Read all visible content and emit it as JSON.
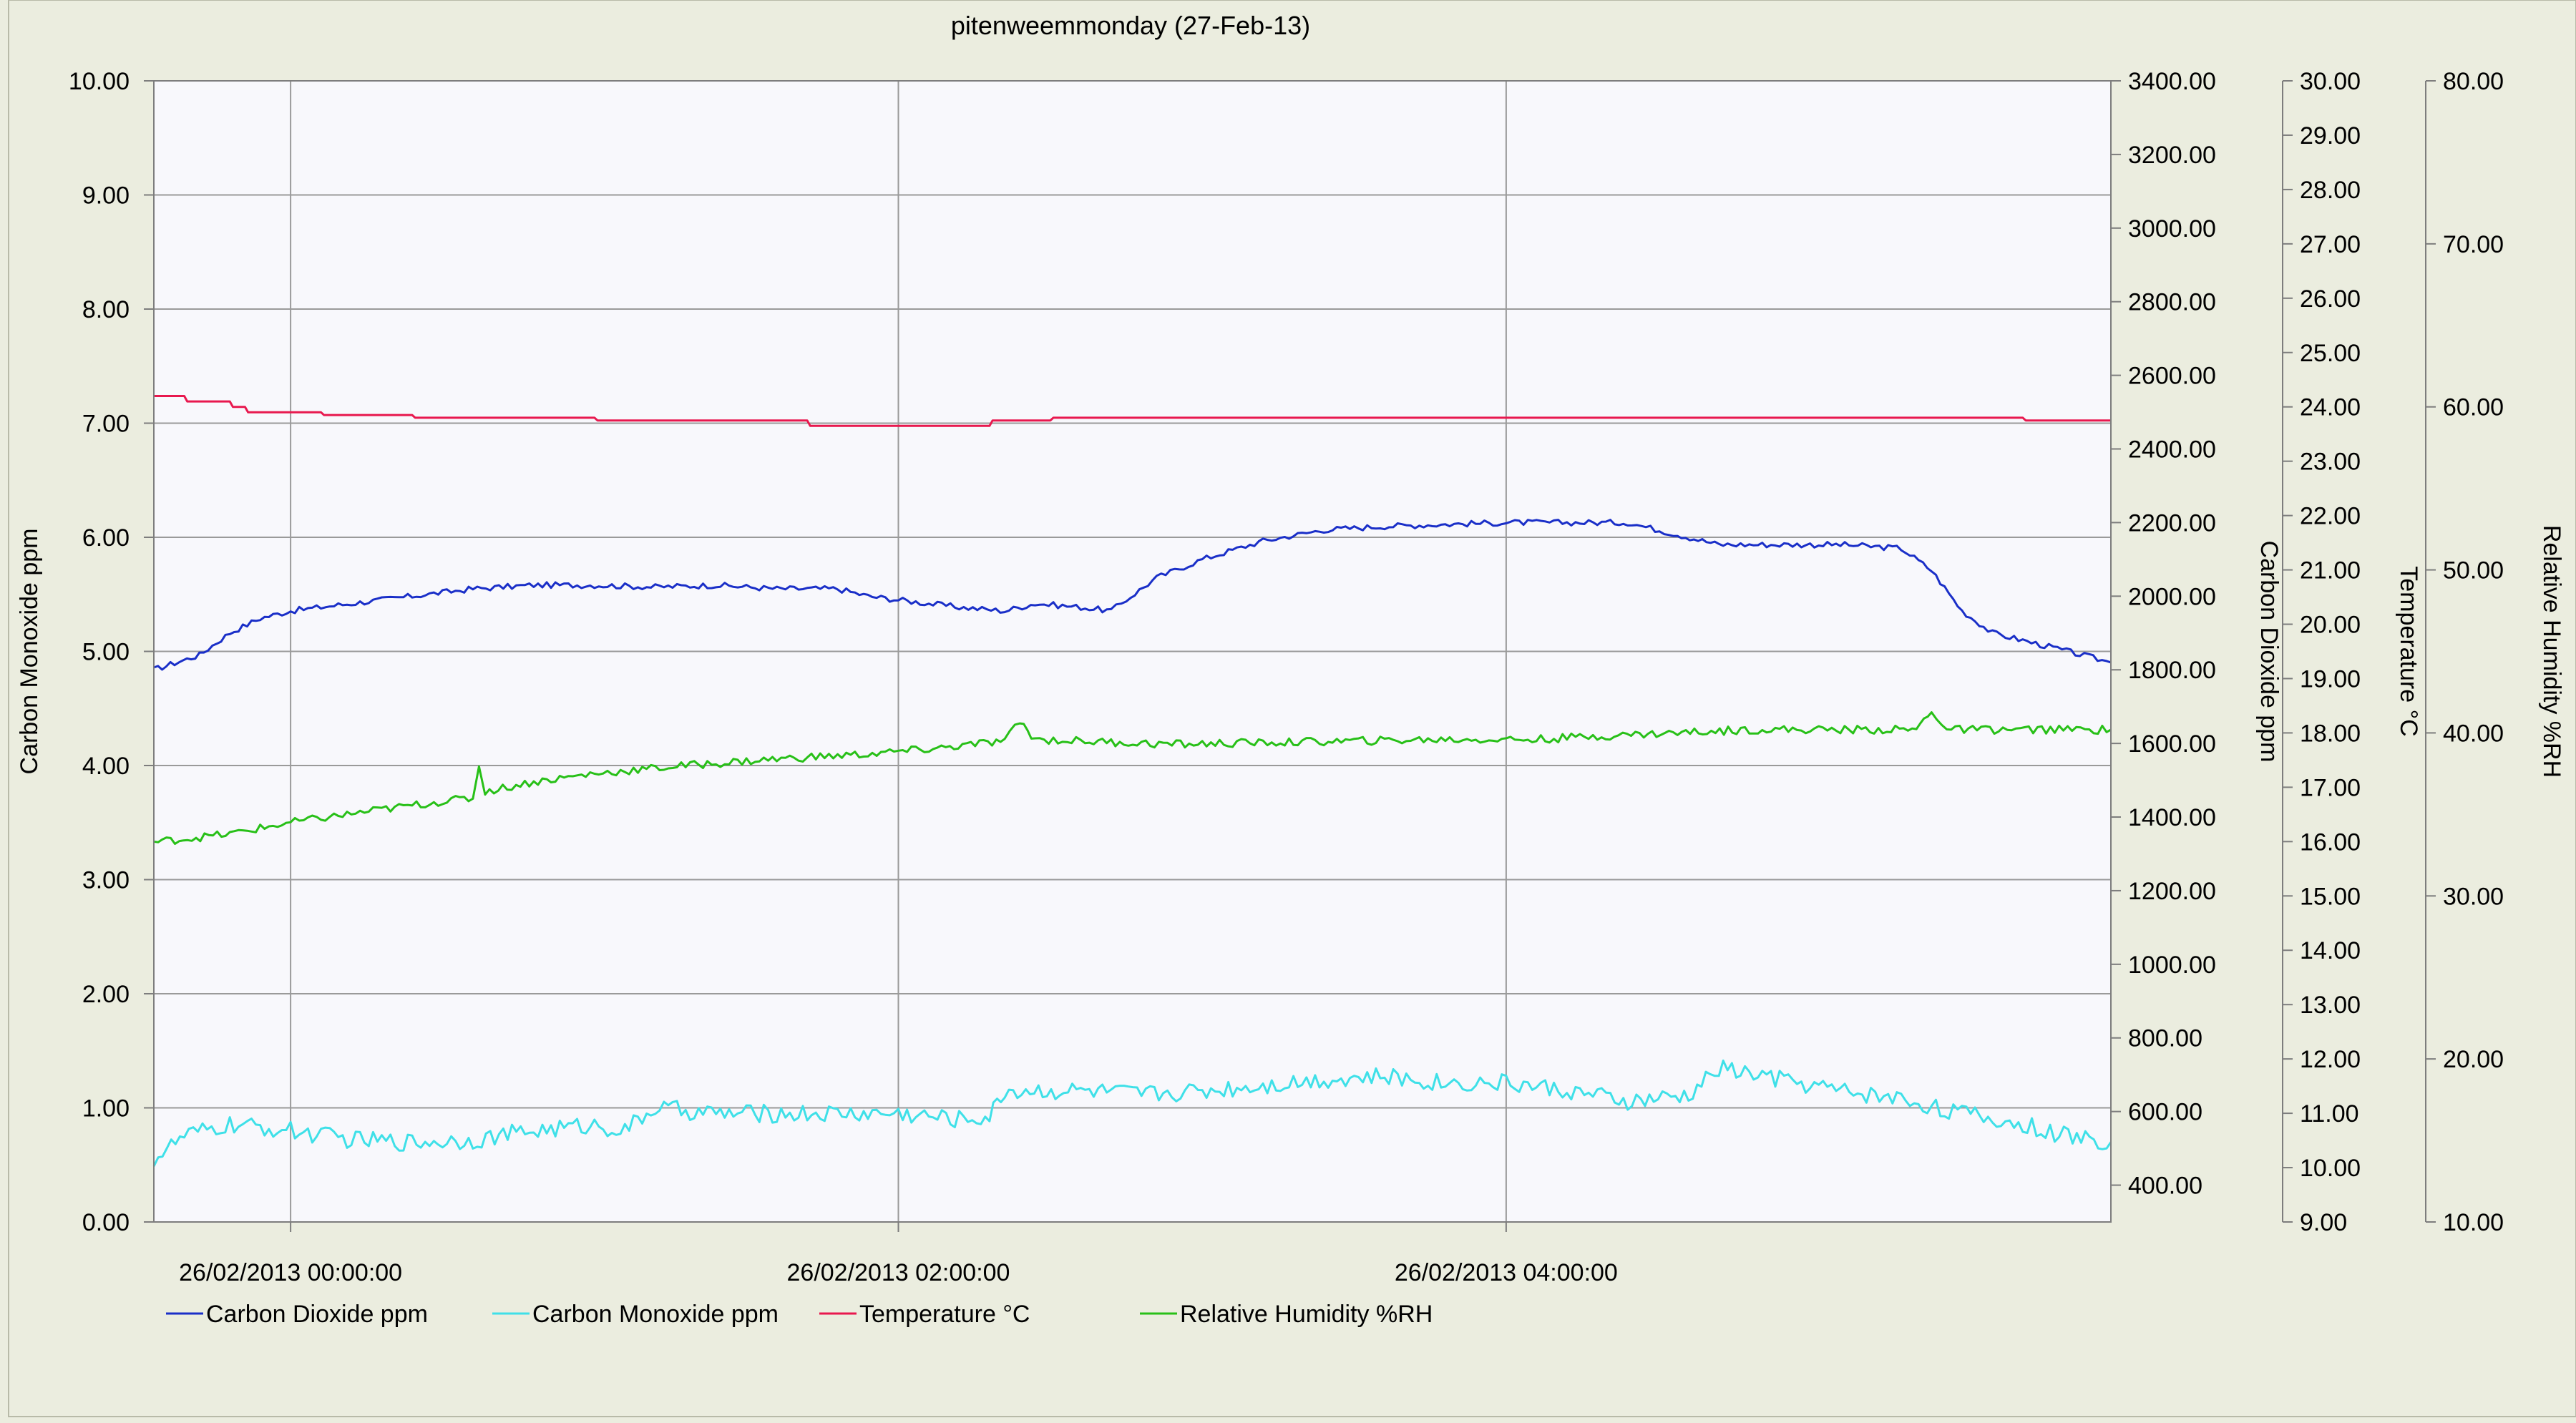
{
  "chart_data": {
    "type": "line",
    "title": "pitenweemmonday (27-Feb-13)",
    "x": {
      "tick_labels": [
        "26/02/2013 00:00:00",
        "26/02/2013 02:00:00",
        "26/02/2013 04:00:00"
      ],
      "tick_hours": [
        0,
        2,
        4
      ],
      "range_hours": [
        -0.45,
        5.99
      ]
    },
    "axes": [
      {
        "id": "co",
        "label": "Carbon Monoxide ppm",
        "side": "left",
        "range": [
          0,
          10
        ],
        "ticks": [
          "0.00",
          "1.00",
          "2.00",
          "3.00",
          "4.00",
          "5.00",
          "6.00",
          "7.00",
          "8.00",
          "9.00",
          "10.00"
        ]
      },
      {
        "id": "co2",
        "label": "Carbon Dioxide ppm",
        "side": "right",
        "range": [
          300,
          3400
        ],
        "ticks": [
          "400.00",
          "600.00",
          "800.00",
          "1000.00",
          "1200.00",
          "1400.00",
          "1600.00",
          "1800.00",
          "2000.00",
          "2200.00",
          "2400.00",
          "2600.00",
          "2800.00",
          "3000.00",
          "3200.00",
          "3400.00"
        ]
      },
      {
        "id": "temp",
        "label": "Temperature °C",
        "side": "right",
        "range": [
          9,
          30
        ],
        "ticks": [
          "9.00",
          "10.00",
          "11.00",
          "12.00",
          "13.00",
          "14.00",
          "15.00",
          "16.00",
          "17.00",
          "18.00",
          "19.00",
          "20.00",
          "21.00",
          "22.00",
          "23.00",
          "24.00",
          "25.00",
          "26.00",
          "27.00",
          "28.00",
          "29.00",
          "30.00"
        ]
      },
      {
        "id": "rh",
        "label": "Relative Humidity %RH",
        "side": "right",
        "range": [
          10,
          80
        ],
        "ticks": [
          "10.00",
          "20.00",
          "30.00",
          "40.00",
          "50.00",
          "60.00",
          "70.00",
          "80.00"
        ]
      }
    ],
    "grid": true,
    "legend_position": "bottom-left",
    "series": [
      {
        "name": "Carbon Dioxide ppm",
        "axis": "co2",
        "color": "#1a2fc8",
        "noise": 8,
        "points": [
          [
            -0.45,
            1800
          ],
          [
            -0.3,
            1840
          ],
          [
            -0.2,
            1900
          ],
          [
            -0.1,
            1940
          ],
          [
            0,
            1960
          ],
          [
            0.2,
            1980
          ],
          [
            0.4,
            2000
          ],
          [
            0.6,
            2020
          ],
          [
            0.8,
            2030
          ],
          [
            1.0,
            2030
          ],
          [
            1.2,
            2025
          ],
          [
            1.4,
            2030
          ],
          [
            1.6,
            2020
          ],
          [
            1.8,
            2020
          ],
          [
            1.9,
            2000
          ],
          [
            2.0,
            1990
          ],
          [
            2.2,
            1970
          ],
          [
            2.35,
            1960
          ],
          [
            2.45,
            1980
          ],
          [
            2.6,
            1970
          ],
          [
            2.7,
            1960
          ],
          [
            2.75,
            1990
          ],
          [
            2.85,
            2050
          ],
          [
            3.0,
            2100
          ],
          [
            3.2,
            2150
          ],
          [
            3.4,
            2180
          ],
          [
            3.6,
            2190
          ],
          [
            3.8,
            2195
          ],
          [
            4.0,
            2200
          ],
          [
            4.2,
            2200
          ],
          [
            4.4,
            2200
          ],
          [
            4.55,
            2170
          ],
          [
            4.7,
            2140
          ],
          [
            4.9,
            2140
          ],
          [
            5.1,
            2140
          ],
          [
            5.3,
            2130
          ],
          [
            5.4,
            2070
          ],
          [
            5.5,
            1960
          ],
          [
            5.6,
            1900
          ],
          [
            5.7,
            1880
          ],
          [
            5.8,
            1860
          ],
          [
            5.99,
            1820
          ]
        ]
      },
      {
        "name": "Carbon Monoxide ppm",
        "axis": "co",
        "color": "#3fe0e8",
        "noise": 0.08,
        "points": [
          [
            -0.45,
            0.55
          ],
          [
            -0.35,
            0.75
          ],
          [
            -0.2,
            0.85
          ],
          [
            0,
            0.8
          ],
          [
            0.2,
            0.72
          ],
          [
            0.4,
            0.7
          ],
          [
            0.6,
            0.72
          ],
          [
            0.8,
            0.8
          ],
          [
            1.0,
            0.85
          ],
          [
            1.1,
            0.8
          ],
          [
            1.2,
            1.0
          ],
          [
            1.4,
            0.95
          ],
          [
            1.6,
            0.95
          ],
          [
            1.8,
            0.95
          ],
          [
            2.0,
            0.95
          ],
          [
            2.2,
            0.9
          ],
          [
            2.3,
            0.92
          ],
          [
            2.35,
            1.15
          ],
          [
            2.6,
            1.15
          ],
          [
            2.8,
            1.12
          ],
          [
            3.0,
            1.15
          ],
          [
            3.2,
            1.2
          ],
          [
            3.4,
            1.25
          ],
          [
            3.6,
            1.27
          ],
          [
            3.8,
            1.22
          ],
          [
            4.0,
            1.22
          ],
          [
            4.2,
            1.15
          ],
          [
            4.4,
            1.05
          ],
          [
            4.6,
            1.1
          ],
          [
            4.7,
            1.35
          ],
          [
            4.9,
            1.25
          ],
          [
            5.1,
            1.15
          ],
          [
            5.3,
            1.08
          ],
          [
            5.5,
            0.95
          ],
          [
            5.7,
            0.85
          ],
          [
            5.85,
            0.75
          ],
          [
            5.99,
            0.7
          ]
        ]
      },
      {
        "name": "Temperature °C",
        "axis": "temp",
        "color": "#e8184e",
        "noise": 0,
        "points": [
          [
            -0.45,
            24.2
          ],
          [
            -0.35,
            24.2
          ],
          [
            -0.34,
            24.1
          ],
          [
            -0.2,
            24.1
          ],
          [
            -0.19,
            24.0
          ],
          [
            -0.15,
            24.0
          ],
          [
            -0.14,
            23.9
          ],
          [
            0.1,
            23.9
          ],
          [
            0.11,
            23.85
          ],
          [
            0.4,
            23.85
          ],
          [
            0.41,
            23.8
          ],
          [
            1.0,
            23.8
          ],
          [
            1.01,
            23.75
          ],
          [
            1.7,
            23.75
          ],
          [
            1.71,
            23.65
          ],
          [
            2.3,
            23.65
          ],
          [
            2.31,
            23.75
          ],
          [
            2.5,
            23.75
          ],
          [
            2.51,
            23.8
          ],
          [
            4.5,
            23.8
          ],
          [
            4.51,
            23.8
          ],
          [
            5.7,
            23.8
          ],
          [
            5.71,
            23.75
          ],
          [
            5.99,
            23.75
          ]
        ]
      },
      {
        "name": "Relative Humidity %RH",
        "axis": "rh",
        "color": "#28c018",
        "noise": 0.25,
        "points": [
          [
            -0.45,
            33.3
          ],
          [
            -0.2,
            33.8
          ],
          [
            0,
            34.5
          ],
          [
            0.3,
            35.3
          ],
          [
            0.5,
            35.8
          ],
          [
            0.6,
            36.0
          ],
          [
            0.62,
            38.0
          ],
          [
            0.64,
            36.4
          ],
          [
            0.8,
            37.0
          ],
          [
            1.0,
            37.5
          ],
          [
            1.3,
            38.0
          ],
          [
            1.6,
            38.4
          ],
          [
            1.9,
            38.7
          ],
          [
            2.1,
            39.0
          ],
          [
            2.35,
            39.5
          ],
          [
            2.4,
            40.7
          ],
          [
            2.45,
            39.6
          ],
          [
            2.6,
            39.5
          ],
          [
            2.9,
            39.3
          ],
          [
            3.2,
            39.4
          ],
          [
            3.5,
            39.5
          ],
          [
            3.8,
            39.6
          ],
          [
            4.1,
            39.6
          ],
          [
            4.3,
            39.8
          ],
          [
            4.55,
            40.0
          ],
          [
            4.8,
            40.2
          ],
          [
            5.1,
            40.2
          ],
          [
            5.35,
            40.2
          ],
          [
            5.4,
            41.4
          ],
          [
            5.45,
            40.2
          ],
          [
            5.99,
            40.2
          ]
        ]
      }
    ]
  }
}
